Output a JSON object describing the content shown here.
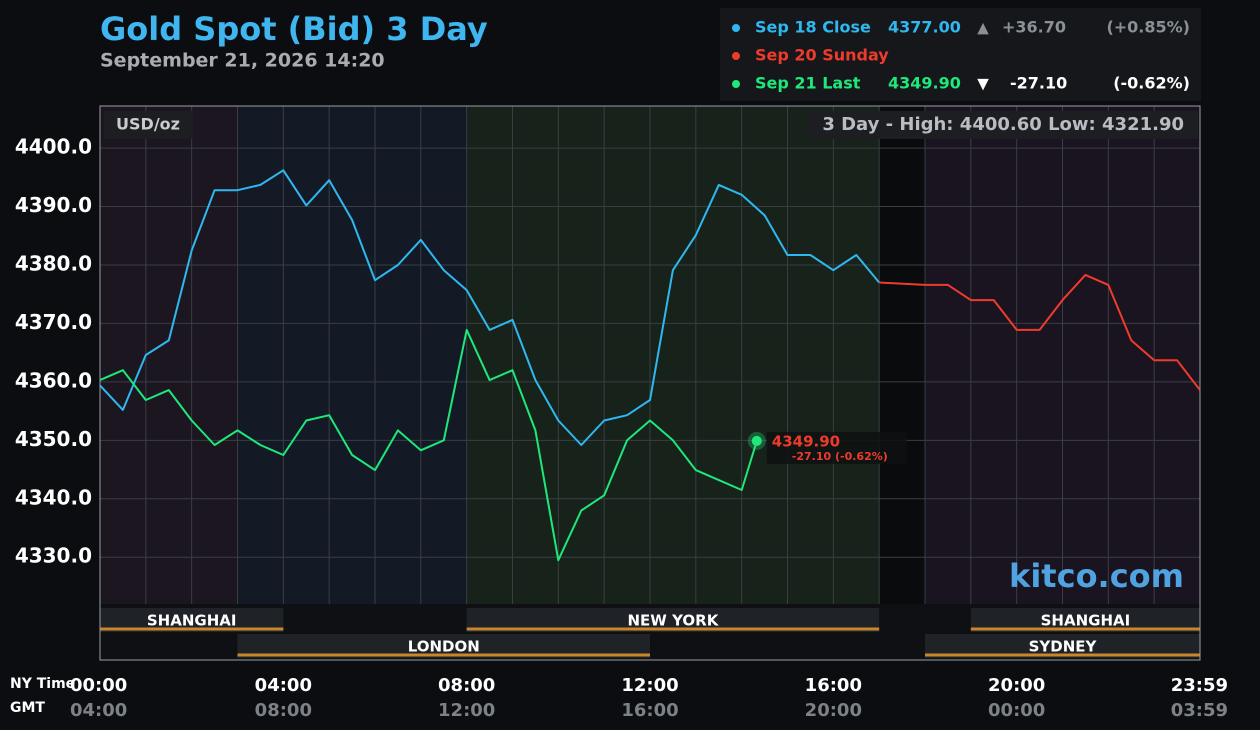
{
  "chart_data": {
    "type": "line",
    "title": "Gold Spot (Bid) 3 Day",
    "subtitle": "September 21, 2026 14:20",
    "y_unit": "USD/oz",
    "watermark": "kitco.com",
    "range_note": {
      "prefix": "3 Day - High:",
      "high": {
        "value": 4400.6,
        "label": "4400.60"
      },
      "low_prefix": "Low:",
      "low": {
        "value": 4321.9,
        "label": "4321.90"
      }
    },
    "x_axis_name": "NY Time",
    "x2_axis_name": "GMT",
    "xlim": [
      0,
      24
    ],
    "xticks": [
      {
        "value": 0,
        "label": "00:00"
      },
      {
        "value": 4,
        "label": "04:00"
      },
      {
        "value": 8,
        "label": "08:00"
      },
      {
        "value": 12,
        "label": "12:00"
      },
      {
        "value": 16,
        "label": "16:00"
      },
      {
        "value": 20,
        "label": "20:00"
      },
      {
        "value": 24,
        "label": "23:59"
      }
    ],
    "x2ticks": [
      {
        "value": 0,
        "label": "04:00"
      },
      {
        "value": 4,
        "label": "08:00"
      },
      {
        "value": 8,
        "label": "12:00"
      },
      {
        "value": 12,
        "label": "16:00"
      },
      {
        "value": 16,
        "label": "20:00"
      },
      {
        "value": 20,
        "label": "00:00"
      },
      {
        "value": 24,
        "label": "03:59"
      }
    ],
    "xgrid_step": 1,
    "ylim": [
      4322,
      4407.2
    ],
    "yticks": [
      {
        "value": 4330,
        "label": "4330.0"
      },
      {
        "value": 4340,
        "label": "4340.0"
      },
      {
        "value": 4350,
        "label": "4350.0"
      },
      {
        "value": 4360,
        "label": "4360.0"
      },
      {
        "value": 4370,
        "label": "4370.0"
      },
      {
        "value": 4380,
        "label": "4380.0"
      },
      {
        "value": 4390,
        "label": "4390.0"
      },
      {
        "value": 4400,
        "label": "4400.0"
      }
    ],
    "grid": true,
    "bands": [
      {
        "start": 0,
        "end": 3,
        "color": "#1c1620"
      },
      {
        "start": 3,
        "end": 8,
        "color": "#131a26"
      },
      {
        "start": 8,
        "end": 17,
        "color": "#17221a"
      },
      {
        "start": 17,
        "end": 18,
        "color": "#0a0b0c"
      },
      {
        "start": 18,
        "end": 24,
        "color": "#1a1420"
      }
    ],
    "sessions": [
      {
        "name": "SHANGHAI",
        "start": 0,
        "end": 4
      },
      {
        "name": "LONDON",
        "start": 3,
        "end": 12
      },
      {
        "name": "NEW YORK",
        "start": 8,
        "end": 17
      },
      {
        "name": "SHANGHAI",
        "start": 19,
        "end": 24
      },
      {
        "name": "SYDNEY",
        "start": 18,
        "end": 24
      }
    ],
    "series": [
      {
        "name": "Sep 18 Close",
        "color": "#2fb8f0",
        "latest": {
          "value": 4377.0,
          "label": "4377.00"
        },
        "arrow": "▲",
        "change": {
          "value": 36.7,
          "label": "+36.70"
        },
        "change_pct": {
          "value": 0.85,
          "label": "(+0.85%)"
        },
        "x": [
          0,
          0.5,
          1,
          1.5,
          2,
          2.5,
          3,
          3.5,
          4,
          4.5,
          5,
          5.5,
          6,
          6.5,
          7,
          7.5,
          8,
          8.5,
          9,
          9.5,
          10,
          10.5,
          11,
          11.5,
          12,
          12.5,
          13,
          13.5,
          14,
          14.5,
          15,
          15.5,
          16,
          16.5,
          17
        ],
        "values": [
          4359.4,
          4355.2,
          4364.6,
          4367.1,
          4382.5,
          4392.8,
          4392.8,
          4393.7,
          4396.2,
          4390.2,
          4394.5,
          4387.7,
          4377.4,
          4380.0,
          4384.3,
          4379.1,
          4375.7,
          4368.9,
          4370.6,
          4360.3,
          4353.4,
          4349.2,
          4353.4,
          4354.3,
          4356.9,
          4379.1,
          4385.1,
          4393.7,
          4392.0,
          4388.5,
          4381.7,
          4381.7,
          4379.1,
          4381.7,
          4377.0
        ]
      },
      {
        "name": "Sep 20 Sunday",
        "color": "#ef3b2c",
        "x": [
          17,
          18,
          18.5,
          19,
          19.5,
          20,
          20.5,
          21,
          21.5,
          22,
          22.5,
          23,
          23.5,
          24
        ],
        "values": [
          4377.0,
          4376.6,
          4376.6,
          4374.0,
          4374.0,
          4368.9,
          4368.9,
          4374.0,
          4378.3,
          4376.6,
          4367.1,
          4363.7,
          4363.7,
          4358.6
        ]
      },
      {
        "name": "Sep 21 Last",
        "color": "#1ee87a",
        "latest": {
          "value": 4349.9,
          "label": "4349.90"
        },
        "arrow": "▼",
        "change": {
          "value": -27.1,
          "label": "-27.10"
        },
        "change_pct": {
          "value": -0.62,
          "label": "(-0.62%)"
        },
        "x": [
          0,
          0.5,
          1,
          1.5,
          2,
          2.5,
          3,
          3.5,
          4,
          4.5,
          5,
          5.5,
          6,
          6.5,
          7,
          7.5,
          8,
          8.5,
          9,
          9.5,
          10,
          10.5,
          11,
          11.5,
          12,
          12.5,
          13,
          13.5,
          14,
          14.33
        ],
        "values": [
          4360.3,
          4362.0,
          4356.9,
          4358.6,
          4353.4,
          4349.2,
          4351.7,
          4349.2,
          4347.5,
          4353.4,
          4354.3,
          4347.5,
          4344.9,
          4351.7,
          4348.3,
          4350.0,
          4368.9,
          4360.3,
          4362.0,
          4351.7,
          4329.5,
          4338.0,
          4340.6,
          4350.0,
          4353.4,
          4350.0,
          4344.9,
          4343.2,
          4341.5,
          4349.9
        ]
      }
    ]
  }
}
